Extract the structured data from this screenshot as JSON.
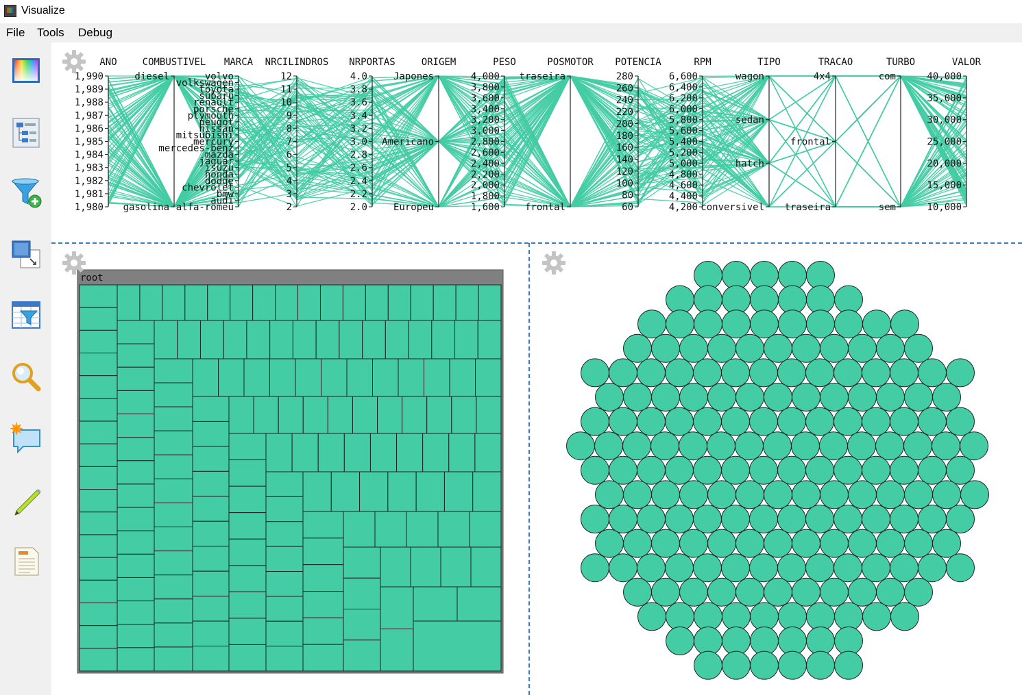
{
  "window": {
    "title": "Visualize"
  },
  "menu": [
    "File",
    "Tools",
    "Debug"
  ],
  "toolbar": [
    {
      "name": "color-palette-icon"
    },
    {
      "name": "hierarchy-icon"
    },
    {
      "name": "filter-add-icon"
    },
    {
      "name": "window-overlap-icon"
    },
    {
      "name": "table-filter-icon"
    },
    {
      "name": "magnifier-icon"
    },
    {
      "name": "annotation-icon"
    },
    {
      "name": "pencil-icon"
    },
    {
      "name": "document-icon"
    }
  ],
  "colors": {
    "accent": "#44cca4",
    "divider": "#3b7bbf",
    "treemap_header": "#808080"
  },
  "parallel_coords": {
    "axes": [
      {
        "name": "ANO",
        "ticks": [
          "1,990",
          "1,989",
          "1,988",
          "1,987",
          "1,986",
          "1,985",
          "1,984",
          "1,983",
          "1,982",
          "1,981",
          "1,980"
        ]
      },
      {
        "name": "COMBUSTIVEL",
        "ticks": [
          "diesel",
          "gasolina"
        ]
      },
      {
        "name": "MARCA",
        "ticks": [
          "volvo",
          "volkswagen",
          "toyota",
          "subaru",
          "renault",
          "porsche",
          "plymouth",
          "peugot",
          "nissan",
          "mitsubishi",
          "mercury",
          "mercedes-benz",
          "mazda",
          "jaguar",
          "isuzu",
          "honda",
          "dodge",
          "chevrolet",
          "bmw",
          "audi",
          "alfa-romeu"
        ]
      },
      {
        "name": "NRCILINDROS",
        "ticks": [
          "12",
          "11",
          "10",
          "9",
          "8",
          "7",
          "6",
          "5",
          "4",
          "3",
          "2"
        ]
      },
      {
        "name": "NRPORTAS",
        "ticks": [
          "4.0",
          "3.8",
          "3.6",
          "3.4",
          "3.2",
          "3.0",
          "2.8",
          "2.6",
          "2.4",
          "2.2",
          "2.0"
        ]
      },
      {
        "name": "ORIGEM",
        "ticks": [
          "Japones",
          "Americano",
          "Europeu"
        ]
      },
      {
        "name": "PESO",
        "ticks": [
          "4,000",
          "3,800",
          "3,600",
          "3,400",
          "3,200",
          "3,000",
          "2,800",
          "2,600",
          "2,400",
          "2,200",
          "2,000",
          "1,800",
          "1,600"
        ]
      },
      {
        "name": "POSMOTOR",
        "ticks": [
          "traseira",
          "frontal"
        ]
      },
      {
        "name": "POTENCIA",
        "ticks": [
          "280",
          "260",
          "240",
          "220",
          "200",
          "180",
          "160",
          "140",
          "120",
          "100",
          "80",
          "60"
        ]
      },
      {
        "name": "RPM",
        "ticks": [
          "6,600",
          "6,400",
          "6,200",
          "6,000",
          "5,800",
          "5,600",
          "5,400",
          "5,200",
          "5,000",
          "4,800",
          "4,600",
          "4,400",
          "4,200"
        ]
      },
      {
        "name": "TIPO",
        "ticks": [
          "wagon",
          "sedan",
          "hatch",
          "conversivel"
        ]
      },
      {
        "name": "TRACAO",
        "ticks": [
          "4x4",
          "frontal",
          "traseira"
        ]
      },
      {
        "name": "TURBO",
        "ticks": [
          "com",
          "sem"
        ]
      },
      {
        "name": "VALOR",
        "ticks": [
          "40,000",
          "35,000",
          "30,000",
          "25,000",
          "20,000",
          "15,000",
          "10,000"
        ]
      }
    ]
  },
  "treemap": {
    "root_label": "root"
  }
}
